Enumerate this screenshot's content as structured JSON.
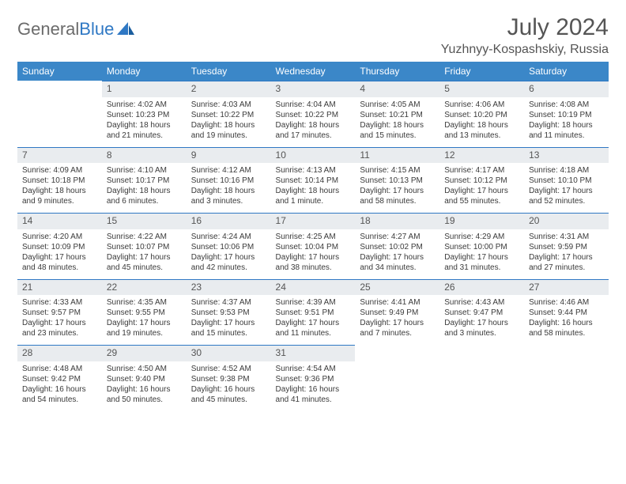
{
  "logo": {
    "text1": "General",
    "text2": "Blue"
  },
  "title": "July 2024",
  "location": "Yuzhnyy-Kospashskiy, Russia",
  "headers": [
    "Sunday",
    "Monday",
    "Tuesday",
    "Wednesday",
    "Thursday",
    "Friday",
    "Saturday"
  ],
  "colors": {
    "header_bg": "#3b87c8",
    "header_fg": "#ffffff",
    "daynum_bg": "#e9ecef",
    "border": "#2f78c4",
    "logo_gray": "#6b6b6b",
    "logo_blue": "#2f78c4"
  },
  "weeks": [
    [
      null,
      {
        "n": "1",
        "sr": "4:02 AM",
        "ss": "10:23 PM",
        "dl": "18 hours and 21 minutes."
      },
      {
        "n": "2",
        "sr": "4:03 AM",
        "ss": "10:22 PM",
        "dl": "18 hours and 19 minutes."
      },
      {
        "n": "3",
        "sr": "4:04 AM",
        "ss": "10:22 PM",
        "dl": "18 hours and 17 minutes."
      },
      {
        "n": "4",
        "sr": "4:05 AM",
        "ss": "10:21 PM",
        "dl": "18 hours and 15 minutes."
      },
      {
        "n": "5",
        "sr": "4:06 AM",
        "ss": "10:20 PM",
        "dl": "18 hours and 13 minutes."
      },
      {
        "n": "6",
        "sr": "4:08 AM",
        "ss": "10:19 PM",
        "dl": "18 hours and 11 minutes."
      }
    ],
    [
      {
        "n": "7",
        "sr": "4:09 AM",
        "ss": "10:18 PM",
        "dl": "18 hours and 9 minutes."
      },
      {
        "n": "8",
        "sr": "4:10 AM",
        "ss": "10:17 PM",
        "dl": "18 hours and 6 minutes."
      },
      {
        "n": "9",
        "sr": "4:12 AM",
        "ss": "10:16 PM",
        "dl": "18 hours and 3 minutes."
      },
      {
        "n": "10",
        "sr": "4:13 AM",
        "ss": "10:14 PM",
        "dl": "18 hours and 1 minute."
      },
      {
        "n": "11",
        "sr": "4:15 AM",
        "ss": "10:13 PM",
        "dl": "17 hours and 58 minutes."
      },
      {
        "n": "12",
        "sr": "4:17 AM",
        "ss": "10:12 PM",
        "dl": "17 hours and 55 minutes."
      },
      {
        "n": "13",
        "sr": "4:18 AM",
        "ss": "10:10 PM",
        "dl": "17 hours and 52 minutes."
      }
    ],
    [
      {
        "n": "14",
        "sr": "4:20 AM",
        "ss": "10:09 PM",
        "dl": "17 hours and 48 minutes."
      },
      {
        "n": "15",
        "sr": "4:22 AM",
        "ss": "10:07 PM",
        "dl": "17 hours and 45 minutes."
      },
      {
        "n": "16",
        "sr": "4:24 AM",
        "ss": "10:06 PM",
        "dl": "17 hours and 42 minutes."
      },
      {
        "n": "17",
        "sr": "4:25 AM",
        "ss": "10:04 PM",
        "dl": "17 hours and 38 minutes."
      },
      {
        "n": "18",
        "sr": "4:27 AM",
        "ss": "10:02 PM",
        "dl": "17 hours and 34 minutes."
      },
      {
        "n": "19",
        "sr": "4:29 AM",
        "ss": "10:00 PM",
        "dl": "17 hours and 31 minutes."
      },
      {
        "n": "20",
        "sr": "4:31 AM",
        "ss": "9:59 PM",
        "dl": "17 hours and 27 minutes."
      }
    ],
    [
      {
        "n": "21",
        "sr": "4:33 AM",
        "ss": "9:57 PM",
        "dl": "17 hours and 23 minutes."
      },
      {
        "n": "22",
        "sr": "4:35 AM",
        "ss": "9:55 PM",
        "dl": "17 hours and 19 minutes."
      },
      {
        "n": "23",
        "sr": "4:37 AM",
        "ss": "9:53 PM",
        "dl": "17 hours and 15 minutes."
      },
      {
        "n": "24",
        "sr": "4:39 AM",
        "ss": "9:51 PM",
        "dl": "17 hours and 11 minutes."
      },
      {
        "n": "25",
        "sr": "4:41 AM",
        "ss": "9:49 PM",
        "dl": "17 hours and 7 minutes."
      },
      {
        "n": "26",
        "sr": "4:43 AM",
        "ss": "9:47 PM",
        "dl": "17 hours and 3 minutes."
      },
      {
        "n": "27",
        "sr": "4:46 AM",
        "ss": "9:44 PM",
        "dl": "16 hours and 58 minutes."
      }
    ],
    [
      {
        "n": "28",
        "sr": "4:48 AM",
        "ss": "9:42 PM",
        "dl": "16 hours and 54 minutes."
      },
      {
        "n": "29",
        "sr": "4:50 AM",
        "ss": "9:40 PM",
        "dl": "16 hours and 50 minutes."
      },
      {
        "n": "30",
        "sr": "4:52 AM",
        "ss": "9:38 PM",
        "dl": "16 hours and 45 minutes."
      },
      {
        "n": "31",
        "sr": "4:54 AM",
        "ss": "9:36 PM",
        "dl": "16 hours and 41 minutes."
      },
      null,
      null,
      null
    ]
  ],
  "labels": {
    "sunrise": "Sunrise: ",
    "sunset": "Sunset: ",
    "daylight": "Daylight: "
  }
}
